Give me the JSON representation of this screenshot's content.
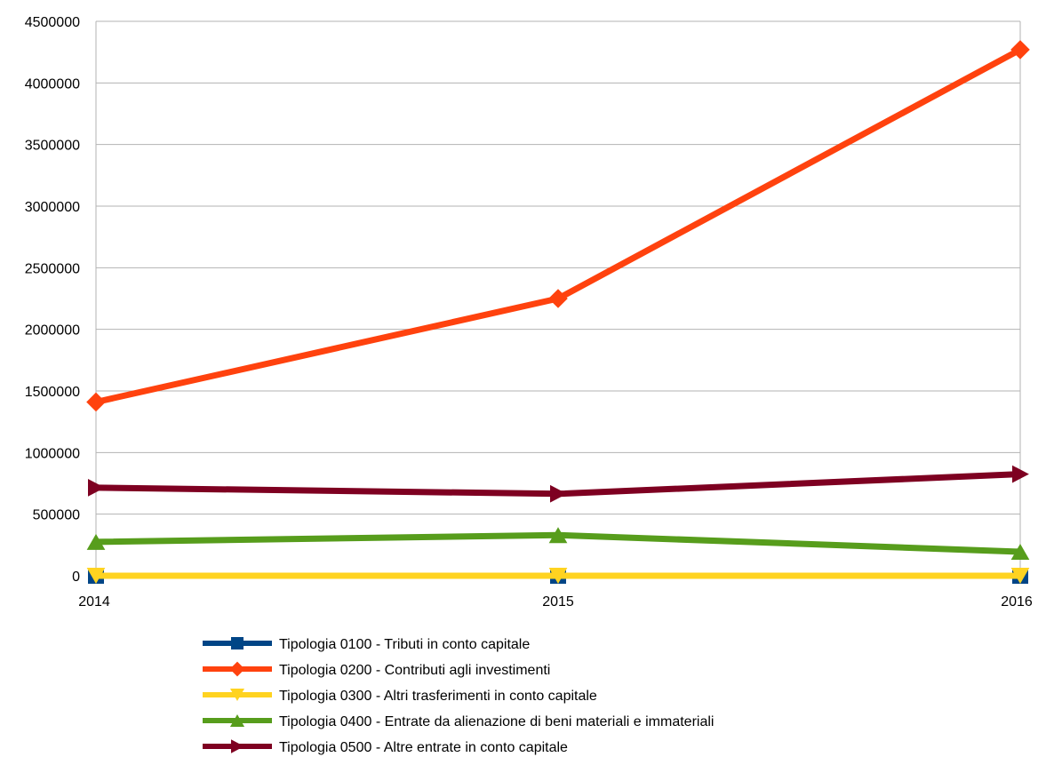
{
  "chart_data": {
    "type": "line",
    "title": "",
    "xlabel": "",
    "ylabel": "",
    "categories": [
      "2014",
      "2015",
      "2016"
    ],
    "ylim": [
      0,
      4500000
    ],
    "yticks": [
      0,
      500000,
      1000000,
      1500000,
      2000000,
      2500000,
      3000000,
      3500000,
      4000000,
      4500000
    ],
    "ytick_labels": [
      "0",
      "500000",
      "1000000",
      "1500000",
      "2000000",
      "2500000",
      "3000000",
      "3500000",
      "4000000",
      "4500000"
    ],
    "grid": true,
    "legend_position": "bottom",
    "series": [
      {
        "name": "Tipologia 0100 - Tributi in conto capitale",
        "values": [
          0,
          0,
          0
        ],
        "color": "#004586",
        "marker": "square"
      },
      {
        "name": "Tipologia 0200 - Contributi agli investimenti",
        "values": [
          1410000,
          2250000,
          4270000
        ],
        "color": "#ff420e",
        "marker": "diamond"
      },
      {
        "name": "Tipologia 0300 - Altri trasferimenti in conto capitale",
        "values": [
          0,
          0,
          0
        ],
        "color": "#ffd320",
        "marker": "triangle-down"
      },
      {
        "name": "Tipologia 0400 - Entrate da alienazione di beni materiali e immateriali",
        "values": [
          275000,
          330000,
          195000
        ],
        "color": "#579d1c",
        "marker": "triangle-up"
      },
      {
        "name": "Tipologia 0500 - Altre entrate in conto capitale",
        "values": [
          715000,
          665000,
          825000
        ],
        "color": "#7e0021",
        "marker": "triangle-right"
      }
    ]
  }
}
